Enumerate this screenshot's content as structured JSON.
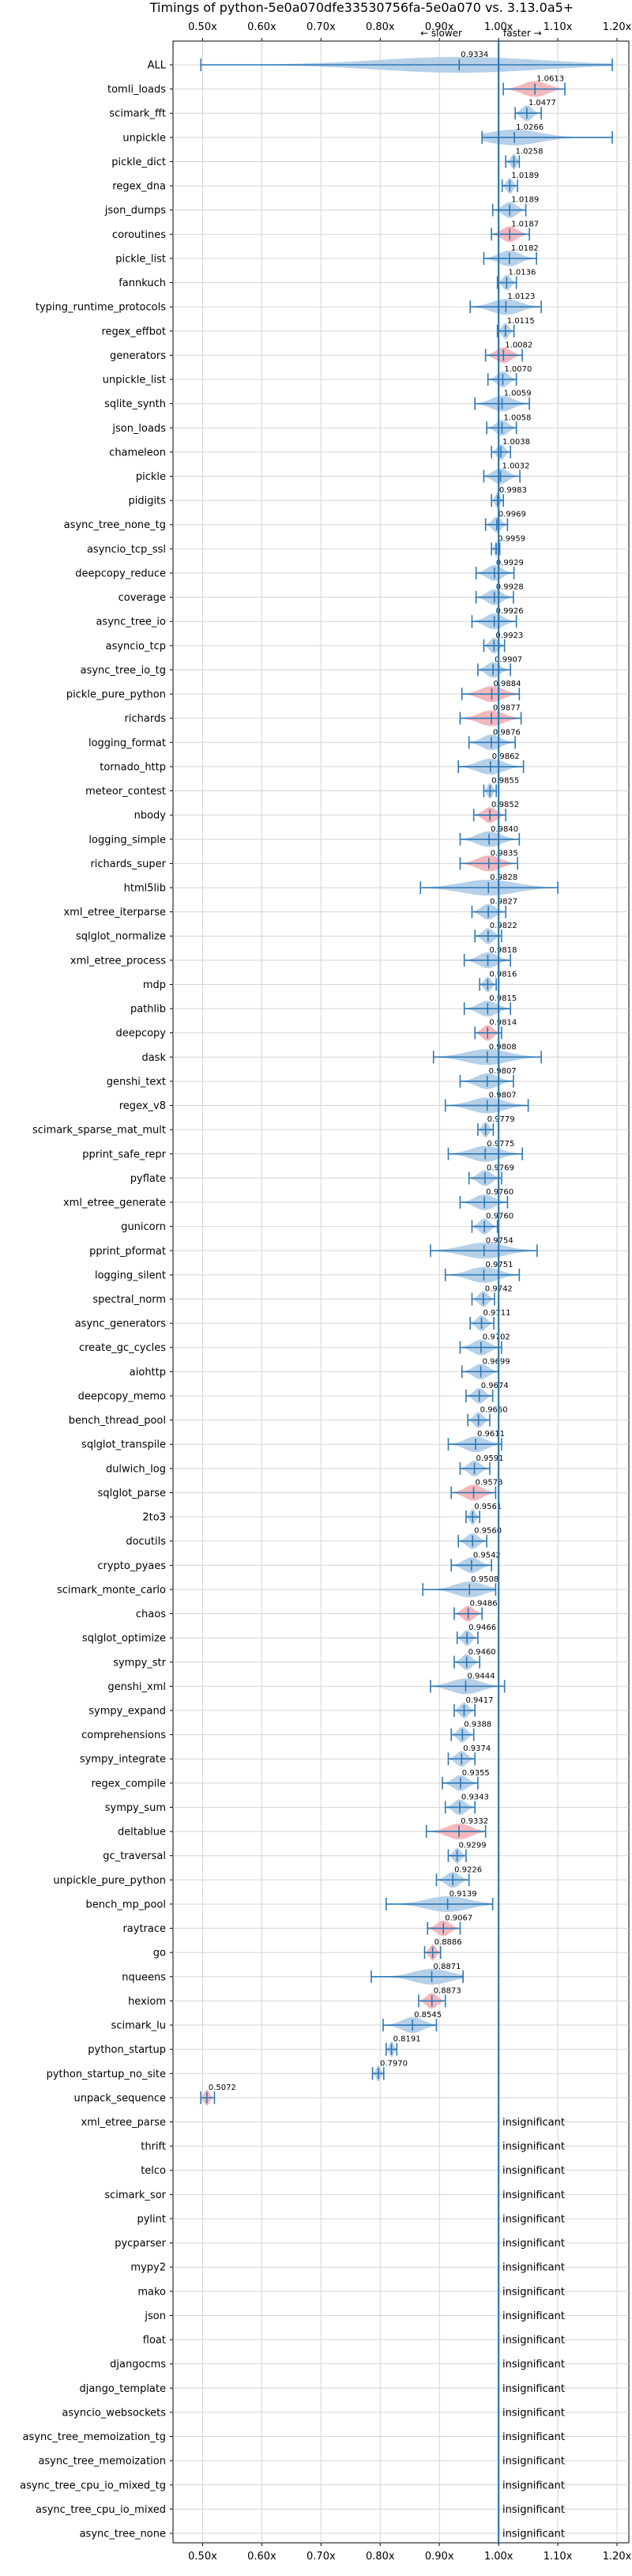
{
  "chart_data": {
    "type": "violin",
    "title": "Timings of python-5e0a070dfe33530756fa-5e0a070 vs. 3.13.0a5+",
    "annotation_slower": "← slower",
    "annotation_faster": "faster →",
    "insignificant_label": "insignificant",
    "xlim": [
      0.45,
      1.22
    ],
    "xticks": [
      0.5,
      0.6,
      0.7,
      0.8,
      0.9,
      1.0,
      1.1,
      1.2
    ],
    "xtick_labels": [
      "0.50x",
      "0.60x",
      "0.70x",
      "0.80x",
      "0.90x",
      "1.00x",
      "1.10x",
      "1.20x"
    ],
    "grid": true,
    "reference_line": 1.0,
    "colors": {
      "faster": "#a9c8e4",
      "slower": "#f2aab0",
      "whisker": "#2d78b6",
      "reference": "#2d78b6",
      "grid": "#d4d4d4"
    },
    "benchmarks": [
      {
        "name": "ALL",
        "value": 0.9334,
        "label": "0.9334",
        "lo": 0.497,
        "hi": 1.192,
        "status": "faster"
      },
      {
        "name": "tomli_loads",
        "value": 1.0613,
        "label": "1.0613",
        "lo": 1.008,
        "hi": 1.112,
        "status": "slower"
      },
      {
        "name": "scimark_fft",
        "value": 1.0477,
        "label": "1.0477",
        "lo": 1.028,
        "hi": 1.072,
        "status": "faster"
      },
      {
        "name": "unpickle",
        "value": 1.0266,
        "label": "1.0266",
        "lo": 0.972,
        "hi": 1.192,
        "status": "faster"
      },
      {
        "name": "pickle_dict",
        "value": 1.0258,
        "label": "1.0258",
        "lo": 1.012,
        "hi": 1.035,
        "status": "faster"
      },
      {
        "name": "regex_dna",
        "value": 1.0189,
        "label": "1.0189",
        "lo": 1.006,
        "hi": 1.032,
        "status": "faster"
      },
      {
        "name": "json_dumps",
        "value": 1.0189,
        "label": "1.0189",
        "lo": 0.99,
        "hi": 1.046,
        "status": "faster"
      },
      {
        "name": "coroutines",
        "value": 1.0187,
        "label": "1.0187",
        "lo": 0.988,
        "hi": 1.052,
        "status": "slower"
      },
      {
        "name": "pickle_list",
        "value": 1.0182,
        "label": "1.0182",
        "lo": 0.975,
        "hi": 1.064,
        "status": "faster"
      },
      {
        "name": "fannkuch",
        "value": 1.0136,
        "label": "1.0136",
        "lo": 0.998,
        "hi": 1.03,
        "status": "faster"
      },
      {
        "name": "typing_runtime_protocols",
        "value": 1.0123,
        "label": "1.0123",
        "lo": 0.952,
        "hi": 1.072,
        "status": "faster"
      },
      {
        "name": "regex_effbot",
        "value": 1.0115,
        "label": "1.0115",
        "lo": 0.998,
        "hi": 1.026,
        "status": "faster"
      },
      {
        "name": "generators",
        "value": 1.0082,
        "label": "1.0082",
        "lo": 0.978,
        "hi": 1.04,
        "status": "slower"
      },
      {
        "name": "unpickle_list",
        "value": 1.007,
        "label": "1.0070",
        "lo": 0.982,
        "hi": 1.03,
        "status": "faster"
      },
      {
        "name": "sqlite_synth",
        "value": 1.0059,
        "label": "1.0059",
        "lo": 0.96,
        "hi": 1.052,
        "status": "faster"
      },
      {
        "name": "json_loads",
        "value": 1.0058,
        "label": "1.0058",
        "lo": 0.98,
        "hi": 1.03,
        "status": "faster"
      },
      {
        "name": "chameleon",
        "value": 1.0038,
        "label": "1.0038",
        "lo": 0.988,
        "hi": 1.02,
        "status": "faster"
      },
      {
        "name": "pickle",
        "value": 1.0032,
        "label": "1.0032",
        "lo": 0.975,
        "hi": 1.036,
        "status": "faster"
      },
      {
        "name": "pidigits",
        "value": 0.9983,
        "label": "0.9983",
        "lo": 0.988,
        "hi": 1.008,
        "status": "faster"
      },
      {
        "name": "async_tree_none_tg",
        "value": 0.9969,
        "label": "0.9969",
        "lo": 0.978,
        "hi": 1.015,
        "status": "faster"
      },
      {
        "name": "asyncio_tcp_ssl",
        "value": 0.9959,
        "label": "0.9959",
        "lo": 0.988,
        "hi": 1.002,
        "status": "faster"
      },
      {
        "name": "deepcopy_reduce",
        "value": 0.9929,
        "label": "0.9929",
        "lo": 0.962,
        "hi": 1.026,
        "status": "faster"
      },
      {
        "name": "coverage",
        "value": 0.9928,
        "label": "0.9928",
        "lo": 0.962,
        "hi": 1.025,
        "status": "faster"
      },
      {
        "name": "async_tree_io",
        "value": 0.9926,
        "label": "0.9926",
        "lo": 0.955,
        "hi": 1.03,
        "status": "faster"
      },
      {
        "name": "asyncio_tcp",
        "value": 0.9923,
        "label": "0.9923",
        "lo": 0.975,
        "hi": 1.01,
        "status": "faster"
      },
      {
        "name": "async_tree_io_tg",
        "value": 0.9907,
        "label": "0.9907",
        "lo": 0.965,
        "hi": 1.02,
        "status": "faster"
      },
      {
        "name": "pickle_pure_python",
        "value": 0.9884,
        "label": "0.9884",
        "lo": 0.938,
        "hi": 1.035,
        "status": "slower"
      },
      {
        "name": "richards",
        "value": 0.9877,
        "label": "0.9877",
        "lo": 0.935,
        "hi": 1.038,
        "status": "slower"
      },
      {
        "name": "logging_format",
        "value": 0.9876,
        "label": "0.9876",
        "lo": 0.95,
        "hi": 1.028,
        "status": "faster"
      },
      {
        "name": "tornado_http",
        "value": 0.9862,
        "label": "0.9862",
        "lo": 0.932,
        "hi": 1.042,
        "status": "faster"
      },
      {
        "name": "meteor_contest",
        "value": 0.9855,
        "label": "0.9855",
        "lo": 0.975,
        "hi": 0.996,
        "status": "faster"
      },
      {
        "name": "nbody",
        "value": 0.9852,
        "label": "0.9852",
        "lo": 0.958,
        "hi": 1.012,
        "status": "slower"
      },
      {
        "name": "logging_simple",
        "value": 0.984,
        "label": "0.9840",
        "lo": 0.935,
        "hi": 1.035,
        "status": "faster"
      },
      {
        "name": "richards_super",
        "value": 0.9835,
        "label": "0.9835",
        "lo": 0.935,
        "hi": 1.032,
        "status": "slower"
      },
      {
        "name": "html5lib",
        "value": 0.9828,
        "label": "0.9828",
        "lo": 0.868,
        "hi": 1.1,
        "status": "faster"
      },
      {
        "name": "xml_etree_iterparse",
        "value": 0.9827,
        "label": "0.9827",
        "lo": 0.955,
        "hi": 1.012,
        "status": "faster"
      },
      {
        "name": "sqlglot_normalize",
        "value": 0.9822,
        "label": "0.9822",
        "lo": 0.96,
        "hi": 1.005,
        "status": "faster"
      },
      {
        "name": "xml_etree_process",
        "value": 0.9818,
        "label": "0.9818",
        "lo": 0.942,
        "hi": 1.02,
        "status": "faster"
      },
      {
        "name": "mdp",
        "value": 0.9816,
        "label": "0.9816",
        "lo": 0.968,
        "hi": 0.996,
        "status": "faster"
      },
      {
        "name": "pathlib",
        "value": 0.9815,
        "label": "0.9815",
        "lo": 0.942,
        "hi": 1.02,
        "status": "faster"
      },
      {
        "name": "deepcopy",
        "value": 0.9814,
        "label": "0.9814",
        "lo": 0.96,
        "hi": 1.005,
        "status": "slower"
      },
      {
        "name": "dask",
        "value": 0.9808,
        "label": "0.9808",
        "lo": 0.89,
        "hi": 1.072,
        "status": "faster"
      },
      {
        "name": "genshi_text",
        "value": 0.9807,
        "label": "0.9807",
        "lo": 0.935,
        "hi": 1.025,
        "status": "faster"
      },
      {
        "name": "regex_v8",
        "value": 0.9807,
        "label": "0.9807",
        "lo": 0.91,
        "hi": 1.05,
        "status": "faster"
      },
      {
        "name": "scimark_sparse_mat_mult",
        "value": 0.9779,
        "label": "0.9779",
        "lo": 0.965,
        "hi": 0.991,
        "status": "faster"
      },
      {
        "name": "pprint_safe_repr",
        "value": 0.9775,
        "label": "0.9775",
        "lo": 0.915,
        "hi": 1.04,
        "status": "faster"
      },
      {
        "name": "pyflate",
        "value": 0.9769,
        "label": "0.9769",
        "lo": 0.95,
        "hi": 1.005,
        "status": "faster"
      },
      {
        "name": "xml_etree_generate",
        "value": 0.976,
        "label": "0.9760",
        "lo": 0.935,
        "hi": 1.015,
        "status": "faster"
      },
      {
        "name": "gunicorn",
        "value": 0.976,
        "label": "0.9760",
        "lo": 0.955,
        "hi": 0.998,
        "status": "faster"
      },
      {
        "name": "pprint_pformat",
        "value": 0.9754,
        "label": "0.9754",
        "lo": 0.885,
        "hi": 1.065,
        "status": "faster"
      },
      {
        "name": "logging_silent",
        "value": 0.9751,
        "label": "0.9751",
        "lo": 0.91,
        "hi": 1.035,
        "status": "faster"
      },
      {
        "name": "spectral_norm",
        "value": 0.9742,
        "label": "0.9742",
        "lo": 0.955,
        "hi": 0.993,
        "status": "faster"
      },
      {
        "name": "async_generators",
        "value": 0.9711,
        "label": "0.9711",
        "lo": 0.952,
        "hi": 0.992,
        "status": "faster"
      },
      {
        "name": "create_gc_cycles",
        "value": 0.9702,
        "label": "0.9702",
        "lo": 0.935,
        "hi": 1.005,
        "status": "faster"
      },
      {
        "name": "aiohttp",
        "value": 0.9699,
        "label": "0.9699",
        "lo": 0.938,
        "hi": 1.0,
        "status": "faster"
      },
      {
        "name": "deepcopy_memo",
        "value": 0.9674,
        "label": "0.9674",
        "lo": 0.945,
        "hi": 0.99,
        "status": "faster"
      },
      {
        "name": "bench_thread_pool",
        "value": 0.966,
        "label": "0.9660",
        "lo": 0.948,
        "hi": 0.985,
        "status": "faster"
      },
      {
        "name": "sqlglot_transpile",
        "value": 0.9611,
        "label": "0.9611",
        "lo": 0.915,
        "hi": 1.005,
        "status": "faster"
      },
      {
        "name": "dulwich_log",
        "value": 0.9591,
        "label": "0.9591",
        "lo": 0.935,
        "hi": 0.985,
        "status": "faster"
      },
      {
        "name": "sqlglot_parse",
        "value": 0.9578,
        "label": "0.9578",
        "lo": 0.92,
        "hi": 0.995,
        "status": "slower"
      },
      {
        "name": "2to3",
        "value": 0.9561,
        "label": "0.9561",
        "lo": 0.945,
        "hi": 0.968,
        "status": "faster"
      },
      {
        "name": "docutils",
        "value": 0.956,
        "label": "0.9560",
        "lo": 0.932,
        "hi": 0.98,
        "status": "faster"
      },
      {
        "name": "crypto_pyaes",
        "value": 0.9542,
        "label": "0.9542",
        "lo": 0.92,
        "hi": 0.988,
        "status": "faster"
      },
      {
        "name": "scimark_monte_carlo",
        "value": 0.9508,
        "label": "0.9508",
        "lo": 0.872,
        "hi": 0.995,
        "status": "faster"
      },
      {
        "name": "chaos",
        "value": 0.9486,
        "label": "0.9486",
        "lo": 0.925,
        "hi": 0.972,
        "status": "slower"
      },
      {
        "name": "sqlglot_optimize",
        "value": 0.9466,
        "label": "0.9466",
        "lo": 0.93,
        "hi": 0.965,
        "status": "faster"
      },
      {
        "name": "sympy_str",
        "value": 0.946,
        "label": "0.9460",
        "lo": 0.925,
        "hi": 0.968,
        "status": "faster"
      },
      {
        "name": "genshi_xml",
        "value": 0.9444,
        "label": "0.9444",
        "lo": 0.885,
        "hi": 1.01,
        "status": "faster"
      },
      {
        "name": "sympy_expand",
        "value": 0.9417,
        "label": "0.9417",
        "lo": 0.925,
        "hi": 0.96,
        "status": "faster"
      },
      {
        "name": "comprehensions",
        "value": 0.9388,
        "label": "0.9388",
        "lo": 0.92,
        "hi": 0.958,
        "status": "faster"
      },
      {
        "name": "sympy_integrate",
        "value": 0.9374,
        "label": "0.9374",
        "lo": 0.915,
        "hi": 0.96,
        "status": "faster"
      },
      {
        "name": "regex_compile",
        "value": 0.9355,
        "label": "0.9355",
        "lo": 0.905,
        "hi": 0.965,
        "status": "faster"
      },
      {
        "name": "sympy_sum",
        "value": 0.9343,
        "label": "0.9343",
        "lo": 0.91,
        "hi": 0.96,
        "status": "faster"
      },
      {
        "name": "deltablue",
        "value": 0.9332,
        "label": "0.9332",
        "lo": 0.878,
        "hi": 0.978,
        "status": "slower"
      },
      {
        "name": "gc_traversal",
        "value": 0.9299,
        "label": "0.9299",
        "lo": 0.915,
        "hi": 0.945,
        "status": "faster"
      },
      {
        "name": "unpickle_pure_python",
        "value": 0.9226,
        "label": "0.9226",
        "lo": 0.895,
        "hi": 0.95,
        "status": "faster"
      },
      {
        "name": "bench_mp_pool",
        "value": 0.9139,
        "label": "0.9139",
        "lo": 0.81,
        "hi": 0.99,
        "status": "faster"
      },
      {
        "name": "raytrace",
        "value": 0.9067,
        "label": "0.9067",
        "lo": 0.88,
        "hi": 0.935,
        "status": "slower"
      },
      {
        "name": "go",
        "value": 0.8886,
        "label": "0.8886",
        "lo": 0.875,
        "hi": 0.902,
        "status": "slower"
      },
      {
        "name": "nqueens",
        "value": 0.8871,
        "label": "0.8871",
        "lo": 0.785,
        "hi": 0.94,
        "status": "faster"
      },
      {
        "name": "hexiom",
        "value": 0.8873,
        "label": "0.8873",
        "lo": 0.865,
        "hi": 0.91,
        "status": "slower"
      },
      {
        "name": "scimark_lu",
        "value": 0.8545,
        "label": "0.8545",
        "lo": 0.805,
        "hi": 0.895,
        "status": "faster"
      },
      {
        "name": "python_startup",
        "value": 0.8191,
        "label": "0.8191",
        "lo": 0.81,
        "hi": 0.828,
        "status": "faster"
      },
      {
        "name": "python_startup_no_site",
        "value": 0.797,
        "label": "0.7970",
        "lo": 0.787,
        "hi": 0.806,
        "status": "faster"
      },
      {
        "name": "unpack_sequence",
        "value": 0.5072,
        "label": "0.5072",
        "lo": 0.497,
        "hi": 0.52,
        "status": "slower"
      },
      {
        "name": "xml_etree_parse",
        "status": "insignificant"
      },
      {
        "name": "thrift",
        "status": "insignificant"
      },
      {
        "name": "telco",
        "status": "insignificant"
      },
      {
        "name": "scimark_sor",
        "status": "insignificant"
      },
      {
        "name": "pylint",
        "status": "insignificant"
      },
      {
        "name": "pycparser",
        "status": "insignificant"
      },
      {
        "name": "mypy2",
        "status": "insignificant"
      },
      {
        "name": "mako",
        "status": "insignificant"
      },
      {
        "name": "json",
        "status": "insignificant"
      },
      {
        "name": "float",
        "status": "insignificant"
      },
      {
        "name": "djangocms",
        "status": "insignificant"
      },
      {
        "name": "django_template",
        "status": "insignificant"
      },
      {
        "name": "asyncio_websockets",
        "status": "insignificant"
      },
      {
        "name": "async_tree_memoization_tg",
        "status": "insignificant"
      },
      {
        "name": "async_tree_memoization",
        "status": "insignificant"
      },
      {
        "name": "async_tree_cpu_io_mixed_tg",
        "status": "insignificant"
      },
      {
        "name": "async_tree_cpu_io_mixed",
        "status": "insignificant"
      },
      {
        "name": "async_tree_none",
        "status": "insignificant"
      }
    ]
  }
}
